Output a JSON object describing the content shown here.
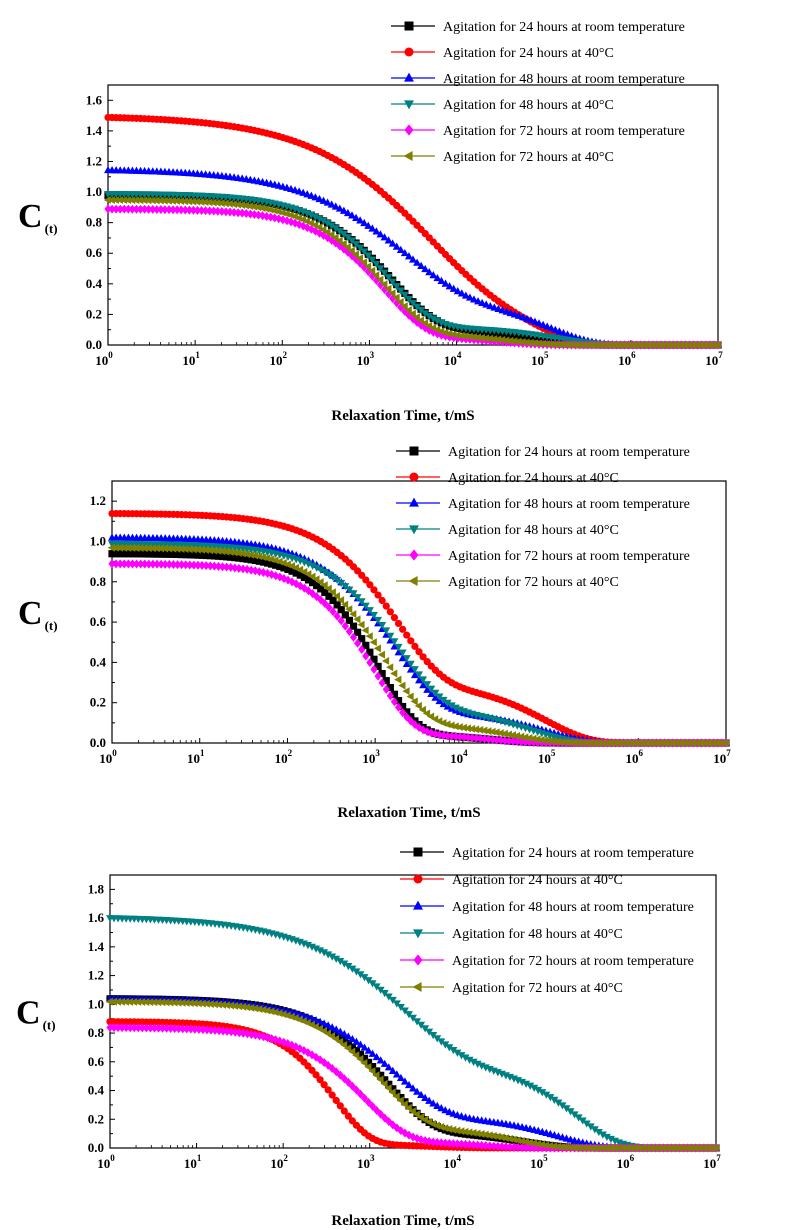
{
  "chart_data": [
    {
      "type": "scatter",
      "title": "",
      "xlabel": "Relaxation Time, t/mS",
      "ylabel_main": "C",
      "ylabel_sub": "(t)",
      "xscale": "log",
      "xlim": [
        1,
        10000000
      ],
      "ylim": [
        0,
        1.7
      ],
      "yticks": [
        "0.0",
        "0.2",
        "0.4",
        "0.6",
        "0.8",
        "1.0",
        "1.2",
        "1.4",
        "1.6"
      ],
      "xticks": [
        "10^0",
        "10^1",
        "10^2",
        "10^3",
        "10^4",
        "10^5",
        "10^6",
        "10^7"
      ],
      "legend_position": "top-right",
      "series": [
        {
          "name": "Agitation for 24 hours at room temperature",
          "color": "#000000",
          "marker": "square",
          "a": 0.98,
          "tau": 1800,
          "b": 0.85,
          "t2": 60000,
          "a2": 0.12
        },
        {
          "name": "Agitation for 24 hours at 40°C",
          "color": "#ff0000",
          "marker": "circle",
          "a": 1.5,
          "tau": 4000,
          "b": 0.55,
          "t2": 80000,
          "a2": 0.35
        },
        {
          "name": "Agitation for 48 hours at room temperature",
          "color": "#0000ff",
          "marker": "triangle-up",
          "a": 1.15,
          "tau": 2500,
          "b": 0.6,
          "t2": 120000,
          "a2": 0.3
        },
        {
          "name": "Agitation for 48 hours at 40°C",
          "color": "#008080",
          "marker": "triangle-down",
          "a": 0.99,
          "tau": 1700,
          "b": 0.85,
          "t2": 150000,
          "a2": 0.12
        },
        {
          "name": "Agitation for 72 hours at room temperature",
          "color": "#ff00ff",
          "marker": "diamond",
          "a": 0.89,
          "tau": 1500,
          "b": 0.9,
          "t2": 30000,
          "a2": 0.06
        },
        {
          "name": "Agitation for 72 hours at 40°C",
          "color": "#808000",
          "marker": "triangle-left",
          "a": 0.95,
          "tau": 1500,
          "b": 0.85,
          "t2": 40000,
          "a2": 0.08
        }
      ]
    },
    {
      "type": "scatter",
      "title": "",
      "xlabel": "Relaxation Time, t/mS",
      "ylabel_main": "C",
      "ylabel_sub": "(t)",
      "xscale": "log",
      "xlim": [
        1,
        10000000
      ],
      "ylim": [
        0,
        1.3
      ],
      "yticks": [
        "0.0",
        "0.2",
        "0.4",
        "0.6",
        "0.8",
        "1.0",
        "1.2"
      ],
      "xticks": [
        "10^0",
        "10^1",
        "10^2",
        "10^3",
        "10^4",
        "10^5",
        "10^6",
        "10^7"
      ],
      "legend_position": "top-right",
      "series": [
        {
          "name": "Agitation for 24 hours at room temperature",
          "color": "#000000",
          "marker": "square",
          "a": 0.94,
          "tau": 1100,
          "b": 1.0,
          "t2": 20000,
          "a2": 0.05
        },
        {
          "name": "Agitation for 24 hours at 40°C",
          "color": "#ff0000",
          "marker": "circle",
          "a": 1.14,
          "tau": 1800,
          "b": 0.85,
          "t2": 90000,
          "a2": 0.3
        },
        {
          "name": "Agitation for 48 hours at room temperature",
          "color": "#0000ff",
          "marker": "triangle-up",
          "a": 1.02,
          "tau": 1700,
          "b": 0.85,
          "t2": 90000,
          "a2": 0.16
        },
        {
          "name": "Agitation for 48 hours at 40°C",
          "color": "#008080",
          "marker": "triangle-down",
          "a": 0.99,
          "tau": 1900,
          "b": 0.85,
          "t2": 60000,
          "a2": 0.18
        },
        {
          "name": "Agitation for 72 hours at room temperature",
          "color": "#ff00ff",
          "marker": "diamond",
          "a": 0.89,
          "tau": 1000,
          "b": 1.0,
          "t2": 20000,
          "a2": 0.05
        },
        {
          "name": "Agitation for 72 hours at 40°C",
          "color": "#808000",
          "marker": "triangle-left",
          "a": 0.97,
          "tau": 1300,
          "b": 0.9,
          "t2": 40000,
          "a2": 0.1
        }
      ]
    },
    {
      "type": "scatter",
      "title": "",
      "xlabel": "Relaxation Time, t/mS",
      "ylabel_main": "C",
      "ylabel_sub": "(t)",
      "xscale": "log",
      "xlim": [
        1,
        10000000
      ],
      "ylim": [
        0,
        1.9
      ],
      "yticks": [
        "0.0",
        "0.2",
        "0.4",
        "0.6",
        "0.8",
        "1.0",
        "1.2",
        "1.4",
        "1.6",
        "1.8"
      ],
      "xticks": [
        "10^0",
        "10^1",
        "10^2",
        "10^3",
        "10^4",
        "10^5",
        "10^6",
        "10^7"
      ],
      "legend_position": "top-right",
      "series": [
        {
          "name": "Agitation for 24 hours at room temperature",
          "color": "#000000",
          "marker": "square",
          "a": 1.04,
          "tau": 1600,
          "b": 0.85,
          "t2": 60000,
          "a2": 0.12
        },
        {
          "name": "Agitation for 24 hours at 40°C",
          "color": "#ff0000",
          "marker": "circle",
          "a": 0.88,
          "tau": 400,
          "b": 1.1,
          "t2": 5000,
          "a2": 0.03
        },
        {
          "name": "Agitation for 48 hours at room temperature",
          "color": "#0000ff",
          "marker": "triangle-up",
          "a": 1.04,
          "tau": 2000,
          "b": 0.75,
          "t2": 150000,
          "a2": 0.22
        },
        {
          "name": "Agitation for 48 hours at 40°C",
          "color": "#008080",
          "marker": "triangle-down",
          "a": 1.61,
          "tau": 2500,
          "b": 0.6,
          "t2": 250000,
          "a2": 0.6
        },
        {
          "name": "Agitation for 72 hours at room temperature",
          "color": "#ff00ff",
          "marker": "diamond",
          "a": 0.84,
          "tau": 900,
          "b": 0.9,
          "t2": 20000,
          "a2": 0.05
        },
        {
          "name": "Agitation for 72 hours at 40°C",
          "color": "#808000",
          "marker": "triangle-left",
          "a": 1.02,
          "tau": 1400,
          "b": 0.85,
          "t2": 50000,
          "a2": 0.15
        }
      ]
    }
  ]
}
